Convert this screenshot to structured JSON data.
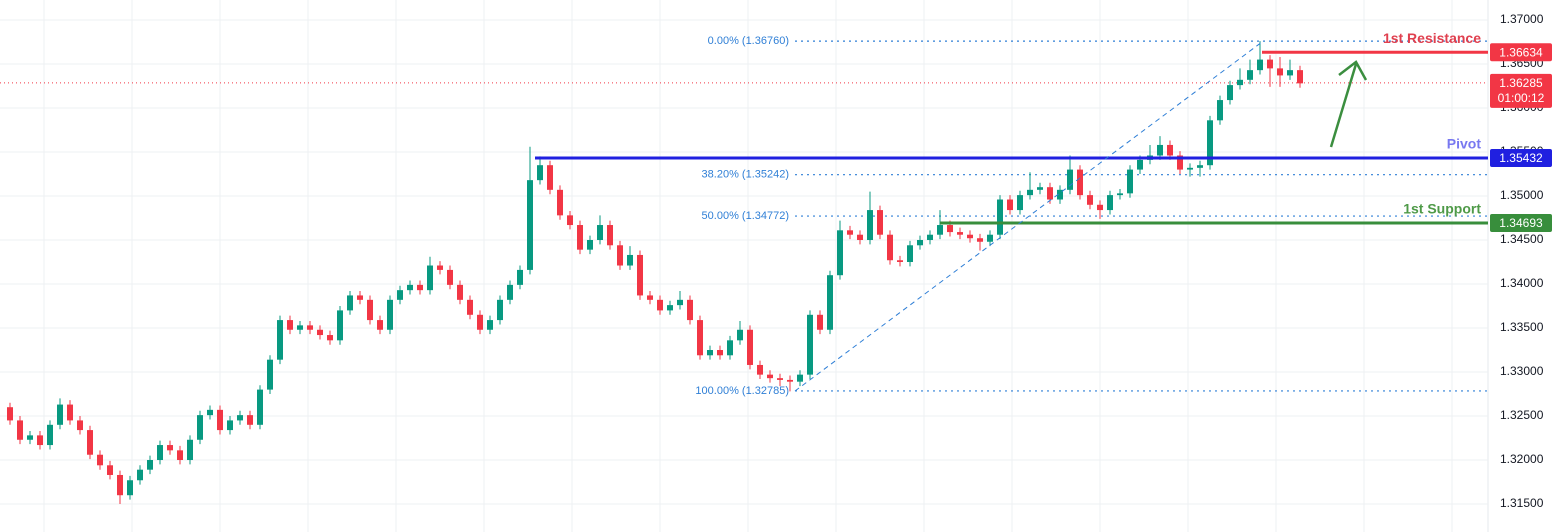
{
  "chart_data": {
    "type": "candlestick",
    "up_color": "#089981",
    "down_color": "#f23645",
    "ylim": [
      1.31182,
      1.37227
    ],
    "yticks": [
      {
        "value": 1.315,
        "label": "1.31500"
      },
      {
        "value": 1.32,
        "label": "1.32000"
      },
      {
        "value": 1.325,
        "label": "1.32500"
      },
      {
        "value": 1.33,
        "label": "1.33000"
      },
      {
        "value": 1.335,
        "label": "1.33500"
      },
      {
        "value": 1.34,
        "label": "1.34000"
      },
      {
        "value": 1.345,
        "label": "1.34500"
      },
      {
        "value": 1.35,
        "label": "1.35000"
      },
      {
        "value": 1.355,
        "label": "1.35500"
      },
      {
        "value": 1.36,
        "label": "1.36000"
      },
      {
        "value": 1.365,
        "label": "1.36500"
      },
      {
        "value": 1.37,
        "label": "1.37000"
      }
    ],
    "grid": true,
    "fib_color": "#2f7fd6",
    "fib_levels": [
      {
        "label": "0.00% (1.36760)",
        "value": 1.3676
      },
      {
        "label": "38.20% (1.35242)",
        "value": 1.35242
      },
      {
        "label": "50.00% (1.34772)",
        "value": 1.34772
      },
      {
        "label": "100.00% (1.32785)",
        "value": 1.32785
      }
    ],
    "levels": [
      {
        "name": "1st Resistance",
        "value": 1.36634,
        "color": "#f23645",
        "text_color": "#e0404f"
      },
      {
        "name": "Pivot",
        "value": 1.35432,
        "color": "#2020e0",
        "text_color": "#7878f0"
      },
      {
        "name": "1st Support",
        "value": 1.34693,
        "color": "#388e3c",
        "text_color": "#4f9a48"
      }
    ],
    "last_price": {
      "value": 1.36285,
      "countdown": "01:00:12",
      "color": "#f23645"
    },
    "candles": [
      [
        1.326,
        1.3265,
        1.324,
        1.3245
      ],
      [
        1.3245,
        1.325,
        1.3218,
        1.3223
      ],
      [
        1.3223,
        1.3233,
        1.3218,
        1.3228
      ],
      [
        1.3228,
        1.3233,
        1.3212,
        1.3217
      ],
      [
        1.3217,
        1.3245,
        1.3212,
        1.324
      ],
      [
        1.324,
        1.327,
        1.3235,
        1.3263
      ],
      [
        1.3263,
        1.3268,
        1.324,
        1.3245
      ],
      [
        1.3245,
        1.325,
        1.3229,
        1.3234
      ],
      [
        1.3234,
        1.3239,
        1.3201,
        1.3206
      ],
      [
        1.3206,
        1.3211,
        1.3189,
        1.3194
      ],
      [
        1.3194,
        1.3199,
        1.3178,
        1.3183
      ],
      [
        1.3183,
        1.3188,
        1.315,
        1.316
      ],
      [
        1.316,
        1.3182,
        1.3155,
        1.3177
      ],
      [
        1.3177,
        1.3194,
        1.3172,
        1.3189
      ],
      [
        1.3189,
        1.3205,
        1.3184,
        1.32
      ],
      [
        1.32,
        1.3222,
        1.3195,
        1.3217
      ],
      [
        1.3217,
        1.3222,
        1.3206,
        1.3211
      ],
      [
        1.3211,
        1.3216,
        1.3195,
        1.32
      ],
      [
        1.32,
        1.3228,
        1.3195,
        1.3223
      ],
      [
        1.3223,
        1.3256,
        1.3218,
        1.3251
      ],
      [
        1.3251,
        1.3262,
        1.3246,
        1.3257
      ],
      [
        1.3257,
        1.3262,
        1.3229,
        1.3234
      ],
      [
        1.3234,
        1.325,
        1.3229,
        1.3245
      ],
      [
        1.3245,
        1.3256,
        1.324,
        1.3251
      ],
      [
        1.3251,
        1.3256,
        1.3235,
        1.324
      ],
      [
        1.324,
        1.3285,
        1.3235,
        1.328
      ],
      [
        1.328,
        1.3319,
        1.3275,
        1.3314
      ],
      [
        1.3314,
        1.3364,
        1.3309,
        1.3359
      ],
      [
        1.3359,
        1.3364,
        1.3343,
        1.3348
      ],
      [
        1.3348,
        1.3358,
        1.3343,
        1.3353
      ],
      [
        1.3353,
        1.3358,
        1.3343,
        1.3348
      ],
      [
        1.3348,
        1.3353,
        1.3337,
        1.3342
      ],
      [
        1.3342,
        1.3347,
        1.3331,
        1.3336
      ],
      [
        1.3336,
        1.3375,
        1.3331,
        1.337
      ],
      [
        1.337,
        1.3392,
        1.3365,
        1.3387
      ],
      [
        1.3387,
        1.3392,
        1.3377,
        1.3382
      ],
      [
        1.3382,
        1.3387,
        1.3354,
        1.3359
      ],
      [
        1.3359,
        1.3364,
        1.3343,
        1.3348
      ],
      [
        1.3348,
        1.3387,
        1.3343,
        1.3382
      ],
      [
        1.3382,
        1.3398,
        1.3377,
        1.3393
      ],
      [
        1.3393,
        1.3404,
        1.3388,
        1.3399
      ],
      [
        1.3399,
        1.3404,
        1.3388,
        1.3393
      ],
      [
        1.3393,
        1.3431,
        1.3388,
        1.3421
      ],
      [
        1.3421,
        1.3426,
        1.3411,
        1.3416
      ],
      [
        1.3416,
        1.3421,
        1.3394,
        1.3399
      ],
      [
        1.3399,
        1.3404,
        1.3377,
        1.3382
      ],
      [
        1.3382,
        1.3387,
        1.336,
        1.3365
      ],
      [
        1.3365,
        1.337,
        1.3343,
        1.3348
      ],
      [
        1.3348,
        1.3364,
        1.3343,
        1.3359
      ],
      [
        1.3359,
        1.3387,
        1.3354,
        1.3382
      ],
      [
        1.3382,
        1.3404,
        1.3377,
        1.3399
      ],
      [
        1.3399,
        1.3421,
        1.3394,
        1.3416
      ],
      [
        1.3416,
        1.3556,
        1.3411,
        1.3518
      ],
      [
        1.3518,
        1.3545,
        1.3513,
        1.3535
      ],
      [
        1.3535,
        1.354,
        1.3502,
        1.3507
      ],
      [
        1.3507,
        1.3512,
        1.3473,
        1.3478
      ],
      [
        1.3478,
        1.3483,
        1.3462,
        1.3467
      ],
      [
        1.3467,
        1.3472,
        1.3434,
        1.3439
      ],
      [
        1.3439,
        1.3455,
        1.3434,
        1.345
      ],
      [
        1.345,
        1.3478,
        1.3445,
        1.3467
      ],
      [
        1.3467,
        1.3472,
        1.3439,
        1.3444
      ],
      [
        1.3444,
        1.3449,
        1.3416,
        1.3421
      ],
      [
        1.3421,
        1.3443,
        1.3416,
        1.3433
      ],
      [
        1.3433,
        1.3438,
        1.3382,
        1.3387
      ],
      [
        1.3387,
        1.3392,
        1.3377,
        1.3382
      ],
      [
        1.3382,
        1.3387,
        1.3365,
        1.337
      ],
      [
        1.337,
        1.3381,
        1.3365,
        1.3376
      ],
      [
        1.3376,
        1.3392,
        1.3371,
        1.3382
      ],
      [
        1.3382,
        1.3387,
        1.3354,
        1.3359
      ],
      [
        1.3359,
        1.3364,
        1.3314,
        1.3319
      ],
      [
        1.3319,
        1.333,
        1.3314,
        1.3325
      ],
      [
        1.3325,
        1.333,
        1.3314,
        1.3319
      ],
      [
        1.3319,
        1.3341,
        1.3314,
        1.3336
      ],
      [
        1.3336,
        1.3358,
        1.3331,
        1.3348
      ],
      [
        1.3348,
        1.3353,
        1.3303,
        1.3308
      ],
      [
        1.3308,
        1.3313,
        1.3292,
        1.3297
      ],
      [
        1.3297,
        1.3302,
        1.3288,
        1.3293
      ],
      [
        1.3293,
        1.3298,
        1.3284,
        1.3291
      ],
      [
        1.3291,
        1.3296,
        1.3278,
        1.3289
      ],
      [
        1.3289,
        1.3302,
        1.3284,
        1.3297
      ],
      [
        1.3297,
        1.337,
        1.3292,
        1.3365
      ],
      [
        1.3365,
        1.337,
        1.3343,
        1.3348
      ],
      [
        1.3348,
        1.3415,
        1.3343,
        1.341
      ],
      [
        1.341,
        1.3472,
        1.3405,
        1.3461
      ],
      [
        1.3461,
        1.3466,
        1.3451,
        1.3456
      ],
      [
        1.3456,
        1.3461,
        1.3445,
        1.345
      ],
      [
        1.345,
        1.3505,
        1.3445,
        1.3484
      ],
      [
        1.3484,
        1.3489,
        1.3451,
        1.3456
      ],
      [
        1.3456,
        1.3461,
        1.3422,
        1.3427
      ],
      [
        1.3427,
        1.3432,
        1.342,
        1.3425
      ],
      [
        1.3425,
        1.3449,
        1.342,
        1.3444
      ],
      [
        1.3444,
        1.3455,
        1.3439,
        1.345
      ],
      [
        1.345,
        1.3461,
        1.3445,
        1.3456
      ],
      [
        1.3456,
        1.3484,
        1.3451,
        1.3467
      ],
      [
        1.3467,
        1.3472,
        1.3454,
        1.3459
      ],
      [
        1.3459,
        1.3464,
        1.3451,
        1.3456
      ],
      [
        1.3456,
        1.3461,
        1.3447,
        1.3452
      ],
      [
        1.3452,
        1.3457,
        1.3438,
        1.3448
      ],
      [
        1.3448,
        1.3461,
        1.3443,
        1.3456
      ],
      [
        1.3456,
        1.3501,
        1.3451,
        1.3496
      ],
      [
        1.3496,
        1.3501,
        1.3479,
        1.3484
      ],
      [
        1.3484,
        1.3506,
        1.3479,
        1.3501
      ],
      [
        1.3501,
        1.3527,
        1.3496,
        1.3507
      ],
      [
        1.3507,
        1.3515,
        1.3502,
        1.351
      ],
      [
        1.351,
        1.3515,
        1.3491,
        1.3496
      ],
      [
        1.3496,
        1.3512,
        1.3491,
        1.3507
      ],
      [
        1.3507,
        1.3546,
        1.3502,
        1.353
      ],
      [
        1.353,
        1.3535,
        1.3496,
        1.3501
      ],
      [
        1.3501,
        1.3506,
        1.3485,
        1.349
      ],
      [
        1.349,
        1.3495,
        1.3474,
        1.3484
      ],
      [
        1.3484,
        1.3506,
        1.3479,
        1.3501
      ],
      [
        1.3501,
        1.3508,
        1.3496,
        1.3503
      ],
      [
        1.3503,
        1.3535,
        1.3498,
        1.353
      ],
      [
        1.353,
        1.3546,
        1.3525,
        1.3541
      ],
      [
        1.3541,
        1.3558,
        1.3536,
        1.3546
      ],
      [
        1.3546,
        1.3568,
        1.3541,
        1.3558
      ],
      [
        1.3558,
        1.3563,
        1.3541,
        1.3546
      ],
      [
        1.3546,
        1.3551,
        1.3525,
        1.353
      ],
      [
        1.353,
        1.3537,
        1.3522,
        1.3532
      ],
      [
        1.3532,
        1.354,
        1.3522,
        1.3535
      ],
      [
        1.3535,
        1.3591,
        1.353,
        1.3586
      ],
      [
        1.3586,
        1.3614,
        1.3581,
        1.3609
      ],
      [
        1.3609,
        1.3631,
        1.3604,
        1.3626
      ],
      [
        1.3626,
        1.3645,
        1.3621,
        1.3632
      ],
      [
        1.3632,
        1.3655,
        1.3627,
        1.3643
      ],
      [
        1.3643,
        1.3676,
        1.3638,
        1.3655
      ],
      [
        1.3655,
        1.366,
        1.3624,
        1.3645
      ],
      [
        1.3645,
        1.3658,
        1.3624,
        1.3637
      ],
      [
        1.3637,
        1.3655,
        1.3632,
        1.3643
      ],
      [
        1.3643,
        1.3648,
        1.3623,
        1.3628
      ]
    ]
  }
}
